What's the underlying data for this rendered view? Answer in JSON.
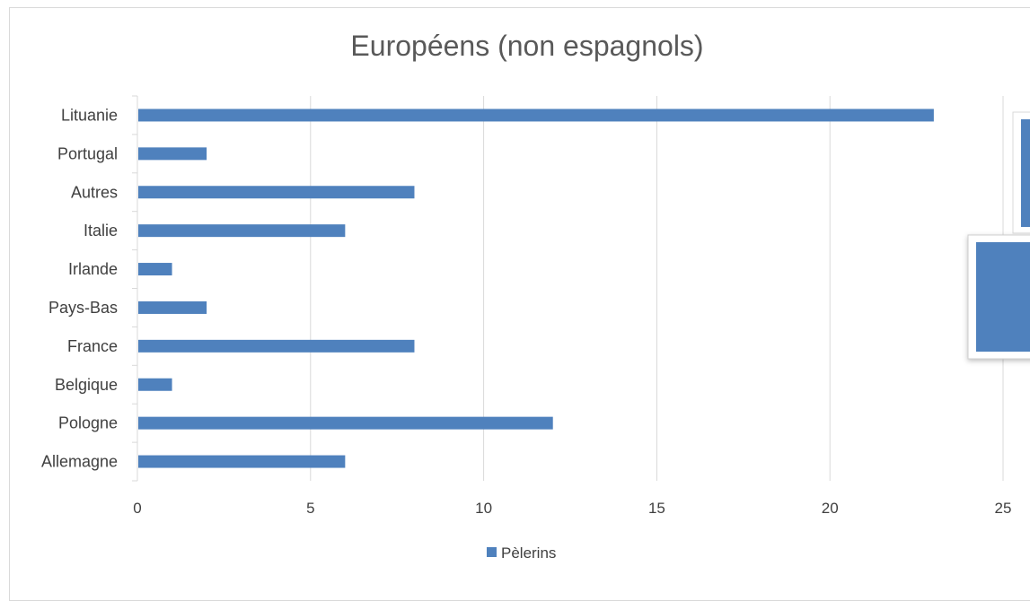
{
  "chart_data": {
    "type": "bar",
    "orientation": "horizontal",
    "title": "Européens (non espagnols)",
    "categories": [
      "Lituanie",
      "Portugal",
      "Autres",
      "Italie",
      "Irlande",
      "Pays-Bas",
      "France",
      "Belgique",
      "Pologne",
      "Allemagne"
    ],
    "series": [
      {
        "name": "Pèlerins",
        "values": [
          23,
          2,
          8,
          6,
          1,
          2,
          8,
          1,
          12,
          6
        ],
        "color": "#4f81bd"
      }
    ],
    "xlim": [
      0,
      25
    ],
    "xticks": [
      "0",
      "5",
      "10",
      "15",
      "20",
      "25"
    ],
    "grid": "vertical",
    "legend_position": "bottom"
  }
}
